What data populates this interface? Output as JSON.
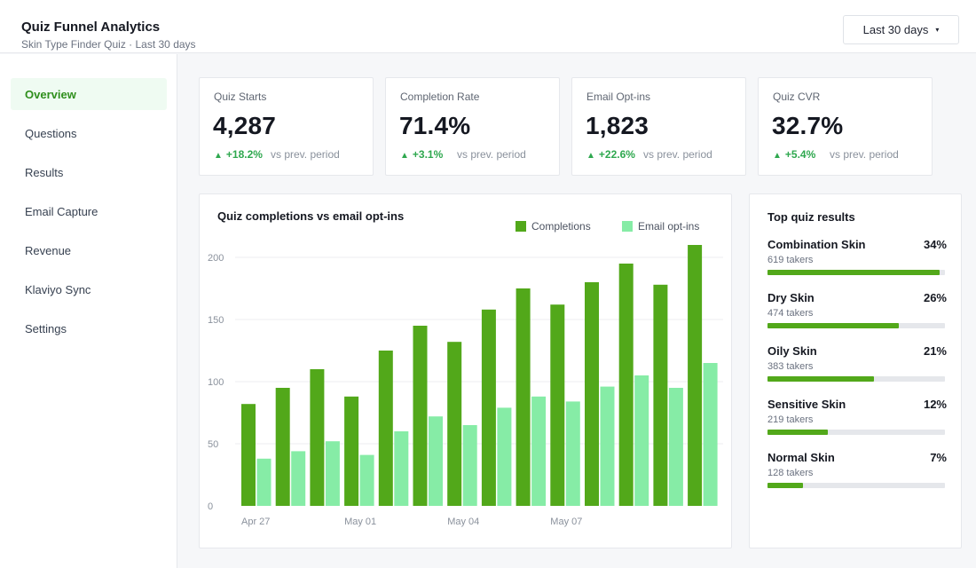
{
  "header": {
    "title": "Quiz Funnel Analytics",
    "subtitle": "Skin Type Finder Quiz · Last 30 days",
    "date_range": "Last 30 days",
    "caret": "▾"
  },
  "sidebar": {
    "items": [
      {
        "label": "Overview",
        "active": true
      },
      {
        "label": "Questions"
      },
      {
        "label": "Results"
      },
      {
        "label": "Email Capture"
      },
      {
        "label": "Revenue"
      },
      {
        "label": "Klaviyo Sync"
      },
      {
        "label": "Settings"
      }
    ]
  },
  "kpis": [
    {
      "label": "Quiz Starts",
      "value": "4,287",
      "delta": "+18.2%",
      "comparison": "vs prev. period"
    },
    {
      "label": "Completion Rate",
      "value": "71.4%",
      "delta": "+3.1%",
      "comparison": "vs prev. period"
    },
    {
      "label": "Email Opt-ins",
      "value": "1,823",
      "delta": "+22.6%",
      "comparison": "vs prev. period"
    },
    {
      "label": "Quiz CVR",
      "value": "32.7%",
      "delta": "+5.4%",
      "comparison": "vs prev. period"
    }
  ],
  "delta_icon": "triangle-up-icon",
  "colors": {
    "completions": "#52a81a",
    "email_optins": "#86eca6",
    "positive": "#2fa84f",
    "active_nav": "#2f8f1d"
  },
  "chart_data": {
    "type": "bar",
    "title": "Quiz completions vs email opt-ins",
    "x_tick_labels": [
      "Apr 27",
      "May 01",
      "May 04",
      "May 07"
    ],
    "y_ticks": [
      0,
      50,
      100,
      150,
      200
    ],
    "ylim": [
      0,
      210
    ],
    "grid": true,
    "legend_position": "top-right",
    "series": [
      {
        "name": "Completions",
        "values": [
          82,
          95,
          110,
          88,
          125,
          145,
          132,
          158,
          175,
          162,
          180,
          195,
          178,
          210
        ]
      },
      {
        "name": "Email opt-ins",
        "values": [
          38,
          44,
          52,
          41,
          60,
          72,
          65,
          79,
          88,
          84,
          96,
          105,
          95,
          115
        ]
      }
    ]
  },
  "results": {
    "title": "Top quiz results",
    "items": [
      {
        "name": "Combination Skin",
        "pct": "34%",
        "takers": "619 takers",
        "share": 0.34
      },
      {
        "name": "Dry Skin",
        "pct": "26%",
        "takers": "474 takers",
        "share": 0.26
      },
      {
        "name": "Oily Skin",
        "pct": "21%",
        "takers": "383 takers",
        "share": 0.21
      },
      {
        "name": "Sensitive Skin",
        "pct": "12%",
        "takers": "219 takers",
        "share": 0.12
      },
      {
        "name": "Normal Skin",
        "pct": "7%",
        "takers": "128 takers",
        "share": 0.07
      }
    ]
  }
}
